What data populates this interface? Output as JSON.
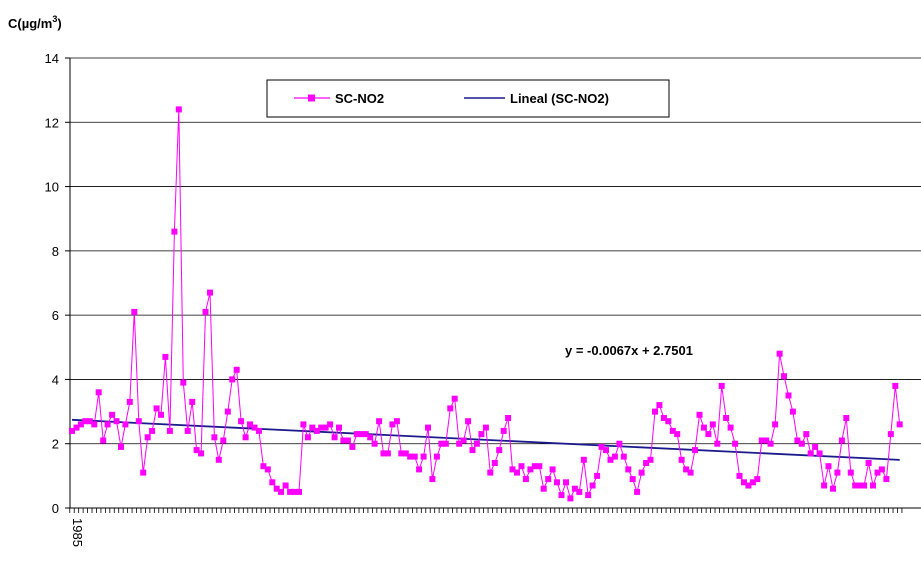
{
  "chart_data": {
    "type": "line",
    "ylabel": "C(µg/m³)",
    "ylabel_base": "C(µg/m",
    "ylabel_sup": "3",
    "ylabel_close": ")",
    "ylim": [
      0,
      14
    ],
    "yticks": [
      "0",
      "2",
      "4",
      "6",
      "8",
      "10",
      "12",
      "14"
    ],
    "xtick_labels": [
      "1985"
    ],
    "grid": "horizontal",
    "legend_position": "top-center",
    "series": [
      {
        "name": "SC-NO2",
        "color": "#ff00ff",
        "marker": "square",
        "values": [
          2.4,
          2.5,
          2.6,
          2.7,
          2.7,
          2.6,
          3.6,
          2.1,
          2.6,
          2.9,
          2.7,
          1.9,
          2.6,
          3.3,
          6.1,
          2.7,
          1.1,
          2.2,
          2.4,
          3.1,
          2.9,
          4.7,
          2.4,
          8.6,
          12.4,
          3.9,
          2.4,
          3.3,
          1.8,
          1.7,
          6.1,
          6.7,
          2.2,
          1.5,
          2.1,
          3.0,
          4.0,
          4.3,
          2.7,
          2.2,
          2.6,
          2.5,
          2.4,
          1.3,
          1.2,
          0.8,
          0.6,
          0.5,
          0.7,
          0.5,
          0.5,
          0.5,
          2.6,
          2.2,
          2.5,
          2.4,
          2.5,
          2.5,
          2.6,
          2.2,
          2.5,
          2.1,
          2.1,
          1.9,
          2.3,
          2.3,
          2.3,
          2.2,
          2.0,
          2.7,
          1.7,
          1.7,
          2.6,
          2.7,
          1.7,
          1.7,
          1.6,
          1.6,
          1.2,
          1.6,
          2.5,
          0.9,
          1.6,
          2.0,
          2.0,
          3.1,
          3.4,
          2.0,
          2.1,
          2.7,
          1.8,
          2.0,
          2.3,
          2.5,
          1.1,
          1.4,
          1.8,
          2.4,
          2.8,
          1.2,
          1.1,
          1.3,
          0.9,
          1.2,
          1.3,
          1.3,
          0.6,
          0.9,
          1.2,
          0.8,
          0.4,
          0.8,
          0.3,
          0.6,
          0.5,
          1.5,
          0.4,
          0.7,
          1.0,
          1.9,
          1.8,
          1.5,
          1.6,
          2.0,
          1.6,
          1.2,
          0.9,
          0.5,
          1.1,
          1.4,
          1.5,
          3.0,
          3.2,
          2.8,
          2.7,
          2.4,
          2.3,
          1.5,
          1.2,
          1.1,
          1.8,
          2.9,
          2.5,
          2.3,
          2.6,
          2.0,
          3.8,
          2.8,
          2.5,
          2.0,
          1.0,
          0.8,
          0.7,
          0.8,
          0.9,
          2.1,
          2.1,
          2.0,
          2.6,
          4.8,
          4.1,
          3.5,
          3.0,
          2.1,
          2.0,
          2.3,
          1.7,
          1.9,
          1.7,
          0.7,
          1.3,
          0.6,
          1.1,
          2.1,
          2.8,
          1.1,
          0.7,
          0.7,
          0.7,
          1.4,
          0.7,
          1.1,
          1.2,
          0.9,
          2.3,
          3.8,
          2.6
        ]
      },
      {
        "name": "Lineal (SC-NO2)",
        "color": "#1a1a8c",
        "type": "trendline",
        "slope": -0.0067,
        "intercept": 2.7501
      }
    ],
    "annotations": [
      {
        "text": "y = -0.0067x + 2.7501"
      }
    ]
  }
}
